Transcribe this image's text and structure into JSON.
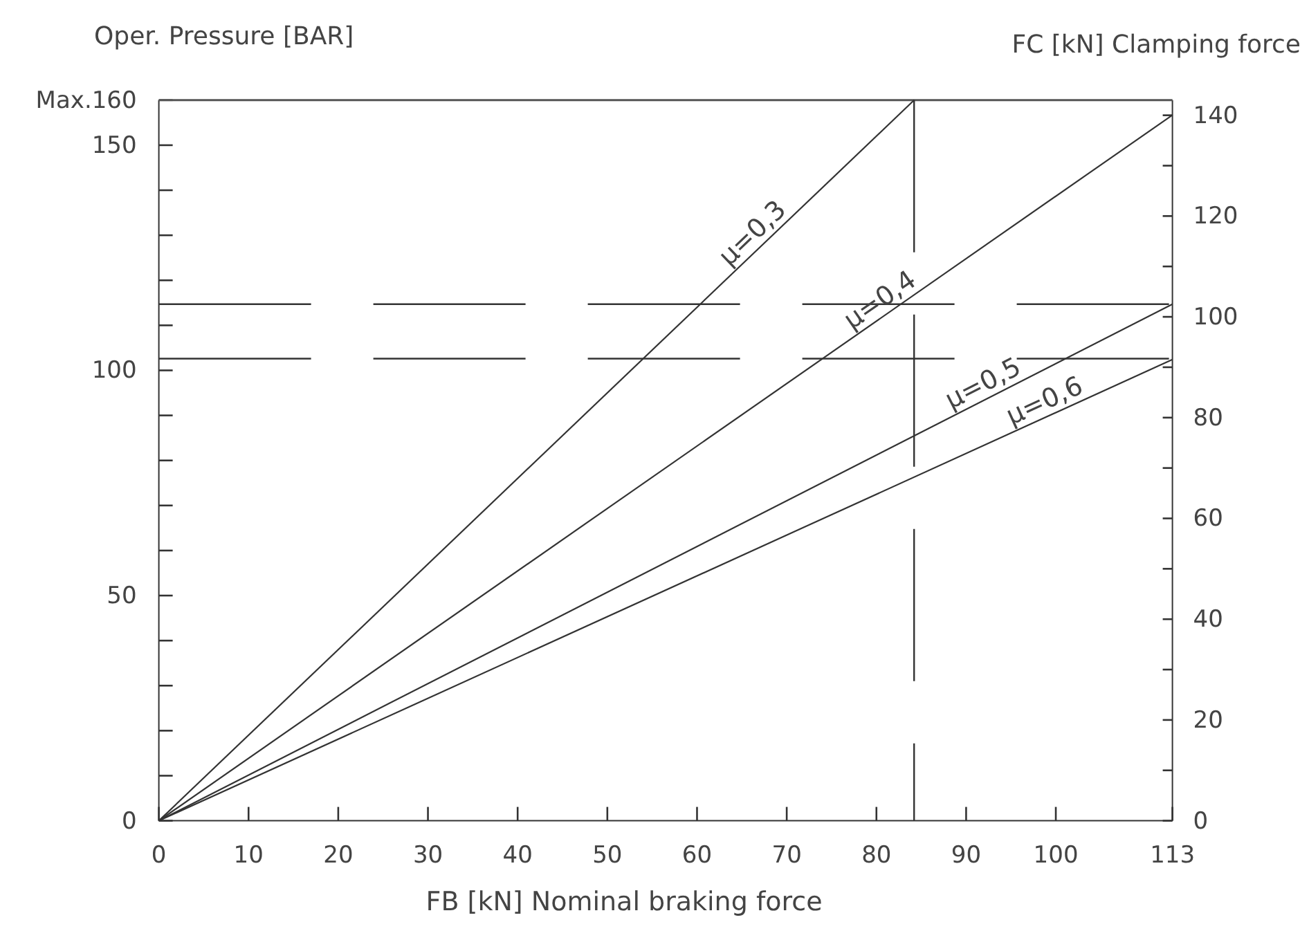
{
  "chart_data": {
    "type": "line",
    "xlabel": "FB [kN] Nominal braking force",
    "ylabel": "Oper. Pressure [BAR]",
    "y2label": "FC [kN] Clamping force",
    "xlim": [
      0,
      113
    ],
    "xticks": [
      0,
      10,
      20,
      30,
      40,
      50,
      60,
      70,
      80,
      90,
      100,
      113
    ],
    "ylim": [
      0,
      160
    ],
    "yticks": [
      0,
      {
        "value": 10,
        "label": null
      },
      {
        "value": 20,
        "label": null
      },
      {
        "value": 30,
        "label": null
      },
      {
        "value": 40,
        "label": null
      },
      50,
      {
        "value": 60,
        "label": null
      },
      {
        "value": 70,
        "label": null
      },
      {
        "value": 80,
        "label": null
      },
      {
        "value": 90,
        "label": null
      },
      100,
      {
        "value": 110,
        "label": null
      },
      {
        "value": 120,
        "label": null
      },
      {
        "value": 130,
        "label": null
      },
      {
        "value": 140,
        "label": null
      },
      150,
      {
        "value": 160,
        "label": "Max.160"
      }
    ],
    "y2lim": [
      0,
      143
    ],
    "y2ticks": [
      0,
      {
        "value": 10,
        "label": null
      },
      20,
      {
        "value": 30,
        "label": null
      },
      40,
      {
        "value": 50,
        "label": null
      },
      60,
      {
        "value": 70,
        "label": null
      },
      80,
      {
        "value": 90,
        "label": null
      },
      100,
      {
        "value": 110,
        "label": null
      },
      120,
      {
        "value": 130,
        "label": null
      },
      140
    ],
    "series": [
      {
        "name": "μ=0,3",
        "color": "#333333",
        "x": [
          0,
          84.2
        ],
        "values": [
          0,
          160
        ]
      },
      {
        "name": "μ=0,4",
        "color": "#333333",
        "x": [
          0,
          113
        ],
        "values": [
          0,
          156.7
        ]
      },
      {
        "name": "μ=0,5",
        "color": "#333333",
        "x": [
          0,
          113
        ],
        "values": [
          0,
          114.7
        ]
      },
      {
        "name": "μ=0,6",
        "color": "#333333",
        "x": [
          0,
          113
        ],
        "values": [
          0,
          102.4
        ]
      }
    ],
    "ref_lines": [
      {
        "axis": "y",
        "value": 114.7,
        "color": "#333333",
        "line_style": "dashed"
      },
      {
        "axis": "y",
        "value": 102.6,
        "color": "#333333",
        "line_style": "dashed"
      },
      {
        "axis": "x",
        "value": 84.2,
        "color": "#333333",
        "line_style": "dashed"
      }
    ],
    "grid": false,
    "legend": false
  }
}
